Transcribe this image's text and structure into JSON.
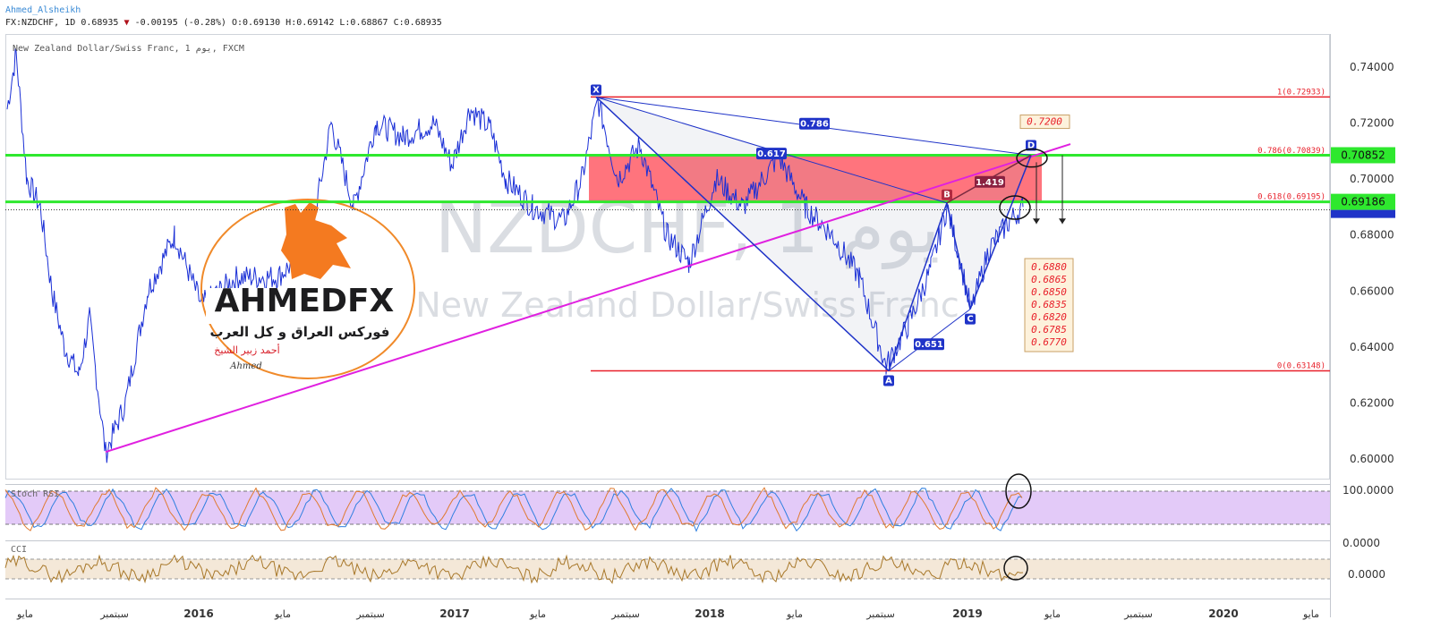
{
  "header": {
    "author": "Ahmed_Alsheikh",
    "symbol": "FX:NZDCHF, 1D",
    "last": "0.68935",
    "down_arrow": "▼",
    "change": "-0.00195 (-0.28%)",
    "o": "O:0.69130",
    "h": "H:0.69142",
    "l": "L:0.68867",
    "c": "C:0.68935",
    "chart_title": "New Zealand Dollar/Swiss Franc, 1 يوم, FXCM"
  },
  "watermark": {
    "line1": "NZDCHF, 1 يوم",
    "line2": "New Zealand Dollar/Swiss Franc"
  },
  "logo": {
    "brand": "AHMEDFX",
    "tagline": "فوركس العراق و كل العرب",
    "name": "أحمد زبير الشيخ",
    "signature": "Ahmed"
  },
  "colors": {
    "price": "#1a2fd6",
    "trendline": "#e020e0",
    "green_level": "#2ee82e",
    "red_level": "#e8202a",
    "zone": "#ff5c66",
    "pattern": "#1f33c8",
    "stoch_band": "#d9b8f5",
    "cci_band": "#f3e6d4",
    "cci_line": "#a8782a",
    "stoch_k": "#2f7fe0",
    "stoch_d": "#e07a2f"
  },
  "chart_data": {
    "type": "line",
    "title": "New Zealand Dollar/Swiss Franc, 1 يوم, FXCM",
    "ylim": [
      0.59,
      0.75
    ],
    "y_ticks": [
      "0.74000",
      "0.72000",
      "0.70000",
      "0.68000",
      "0.66000",
      "0.64000",
      "0.62000",
      "0.60000"
    ],
    "x_ticks": [
      "مايو",
      "سبتمبر",
      "2016",
      "مايو",
      "سبتمبر",
      "2017",
      "مايو",
      "سبتمبر",
      "2018",
      "مايو",
      "سبتمبر",
      "2019",
      "مايو",
      "سبتمبر",
      "2020",
      "مايو"
    ],
    "price_tags": [
      {
        "label": "0.70852",
        "value": 0.70852
      },
      {
        "label": "0.69186",
        "value": 0.69186
      }
    ],
    "fib_levels": [
      {
        "label": "1(0.72933)",
        "value": 0.72933
      },
      {
        "label": "0.786(0.70839)",
        "value": 0.70839
      },
      {
        "label": "0.618(0.69195)",
        "value": 0.69195
      },
      {
        "label": "0(0.63148)",
        "value": 0.63148
      }
    ],
    "pattern": {
      "points": [
        {
          "label": "X",
          "value": 0.7293
        },
        {
          "label": "A",
          "value": 0.6315
        },
        {
          "label": "B",
          "value": 0.6915
        },
        {
          "label": "C",
          "value": 0.6535
        },
        {
          "label": "D",
          "value": 0.7085
        }
      ],
      "ratios": [
        "0.786",
        "0.617",
        "1.419",
        "0.651"
      ]
    },
    "target_label": "0.7200",
    "targets": [
      "0.6880",
      "0.6865",
      "0.6850",
      "0.6835",
      "0.6820",
      "0.6785",
      "0.6770"
    ],
    "indicators": [
      {
        "name": "Stoch RSI",
        "ticks": [
          "100.0000",
          "0.0000"
        ]
      },
      {
        "name": "CCI",
        "ticks": [
          "0.0000"
        ]
      }
    ]
  }
}
